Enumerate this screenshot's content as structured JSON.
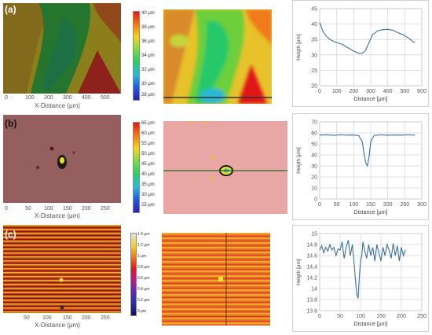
{
  "panels": [
    {
      "label": "(a)",
      "map_xlabel": "X-Distance (μm)",
      "map_xticks": [
        "0",
        "100",
        "200",
        "300",
        "400",
        "500"
      ],
      "colorbar_ticks": [
        "40 μm",
        "38 μm",
        "36 μm",
        "34 μm",
        "32 μm",
        "30 μm",
        "28 μm"
      ]
    },
    {
      "label": "(b)",
      "map_xlabel": "X-Distance (μm)",
      "map_xticks": [
        "0",
        "50",
        "100",
        "150",
        "200",
        "250"
      ],
      "colorbar_ticks": [
        "65 μm",
        "60 μm",
        "55 μm",
        "50 μm",
        "45 μm",
        "40 μm",
        "35 μm",
        "30 μm",
        "25 μm"
      ]
    },
    {
      "label": "(c)",
      "map_xlabel": "X-Distance (μm)",
      "map_xticks": [
        "50",
        "100",
        "150",
        "200",
        "250"
      ],
      "colorbar_ticks": [
        "1.4 μm",
        "1.2 μm",
        "1 μm",
        "0.8 μm",
        "0.6 μm",
        "0.4 μm",
        "0.2 μm",
        "0 μm"
      ]
    }
  ],
  "chart_data": [
    {
      "type": "line",
      "xlabel": "Distance [μm]",
      "ylabel": "Heigth [μm]",
      "xlim": [
        0,
        600
      ],
      "ylim": [
        20,
        45
      ],
      "xticks": [
        0,
        100,
        200,
        300,
        400,
        500,
        600
      ],
      "yticks": [
        20,
        25,
        30,
        35,
        40,
        45
      ],
      "grid": true,
      "color": "#3a6ea5",
      "x": [
        0,
        20,
        40,
        60,
        80,
        100,
        130,
        160,
        190,
        210,
        230,
        250,
        270,
        290,
        310,
        340,
        370,
        400,
        430,
        460,
        490,
        520,
        550,
        560
      ],
      "y": [
        40.5,
        37.5,
        36,
        35,
        34.5,
        34,
        33.5,
        32.5,
        31.5,
        31,
        30.5,
        30.5,
        31.5,
        34,
        36.5,
        37.8,
        38.2,
        38.3,
        38,
        37.2,
        36.5,
        35.5,
        34.2,
        34
      ]
    },
    {
      "type": "line",
      "xlabel": "Distance [μm]",
      "ylabel": "Heigth [μm]",
      "xlim": [
        0,
        300
      ],
      "ylim": [
        0,
        70
      ],
      "xticks": [
        0,
        50,
        100,
        150,
        200,
        250,
        300
      ],
      "yticks": [
        0,
        10,
        20,
        30,
        40,
        50,
        60,
        70
      ],
      "grid": true,
      "color": "#3a6ea5",
      "x": [
        0,
        20,
        40,
        60,
        80,
        100,
        115,
        125,
        130,
        135,
        140,
        145,
        150,
        160,
        180,
        200,
        220,
        240,
        260,
        280
      ],
      "y": [
        58,
        58.3,
        57.8,
        58.2,
        58,
        58.1,
        57.5,
        52,
        42,
        33,
        30,
        38,
        52,
        57.8,
        58.2,
        57.9,
        58.1,
        58,
        58.2,
        58
      ]
    },
    {
      "type": "line",
      "xlabel": "Distance [μm]",
      "ylabel": "Heigth [μm]",
      "xlim": [
        0,
        250
      ],
      "ylim": [
        13.6,
        15
      ],
      "xticks": [
        0,
        50,
        100,
        150,
        200,
        250
      ],
      "yticks": [
        13.6,
        13.8,
        14,
        14.2,
        14.4,
        14.6,
        14.8,
        15
      ],
      "grid": true,
      "color": "#3a6ea5",
      "x": [
        0,
        5,
        10,
        15,
        20,
        25,
        30,
        35,
        40,
        45,
        50,
        55,
        60,
        65,
        70,
        75,
        80,
        85,
        88,
        91,
        94,
        97,
        100,
        103,
        106,
        110,
        115,
        120,
        125,
        130,
        135,
        140,
        145,
        150,
        155,
        160,
        165,
        170,
        175,
        180,
        185,
        190,
        195,
        200,
        205,
        210
      ],
      "y": [
        14.7,
        14.78,
        14.65,
        14.75,
        14.68,
        14.8,
        14.7,
        14.75,
        14.6,
        14.72,
        14.7,
        14.85,
        14.55,
        14.75,
        14.88,
        14.6,
        14.8,
        14.4,
        14.1,
        13.9,
        13.82,
        14.2,
        14.5,
        14.6,
        14.85,
        14.7,
        14.55,
        14.8,
        14.6,
        14.75,
        14.5,
        14.8,
        14.65,
        14.5,
        14.75,
        14.6,
        14.8,
        14.7,
        14.55,
        14.82,
        14.6,
        14.78,
        14.5,
        14.75,
        14.6,
        14.7
      ]
    }
  ]
}
